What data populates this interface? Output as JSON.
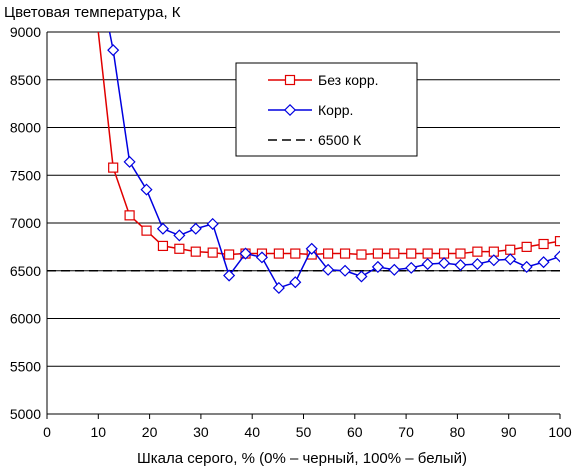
{
  "chart_data": {
    "type": "line",
    "ylabel": "Цветовая температура, К",
    "xlabel": "Шкала серого, % (0% – черный, 100% – белый)",
    "xlim": [
      0,
      100
    ],
    "ylim": [
      5000,
      9000
    ],
    "xticks": [
      "0",
      "10",
      "20",
      "30",
      "40",
      "50",
      "60",
      "70",
      "80",
      "90",
      "100"
    ],
    "yticks": [
      "5000",
      "5500",
      "6000",
      "6500",
      "7000",
      "7500",
      "8000",
      "8500",
      "9000"
    ],
    "grid": "horizontal",
    "legend": "top-right",
    "series": [
      {
        "name": "Без корр.",
        "color": "#e00000",
        "marker": "square",
        "points": [
          [
            10,
            9000
          ],
          [
            12.9,
            7580
          ],
          [
            16.1,
            7080
          ],
          [
            19.4,
            6920
          ],
          [
            22.6,
            6760
          ],
          [
            25.8,
            6730
          ],
          [
            29.0,
            6700
          ],
          [
            32.3,
            6690
          ],
          [
            35.5,
            6670
          ],
          [
            38.7,
            6680
          ],
          [
            41.9,
            6680
          ],
          [
            45.2,
            6680
          ],
          [
            48.4,
            6680
          ],
          [
            51.6,
            6670
          ],
          [
            54.8,
            6680
          ],
          [
            58.1,
            6680
          ],
          [
            61.3,
            6670
          ],
          [
            64.5,
            6680
          ],
          [
            67.7,
            6680
          ],
          [
            71.0,
            6680
          ],
          [
            74.2,
            6680
          ],
          [
            77.4,
            6680
          ],
          [
            80.6,
            6680
          ],
          [
            83.9,
            6700
          ],
          [
            87.1,
            6700
          ],
          [
            90.3,
            6720
          ],
          [
            93.5,
            6750
          ],
          [
            96.8,
            6780
          ],
          [
            100,
            6810
          ]
        ]
      },
      {
        "name": "Корр.",
        "color": "#0000e0",
        "marker": "diamond",
        "points": [
          [
            12.2,
            9000
          ],
          [
            12.9,
            8810
          ],
          [
            16.1,
            7640
          ],
          [
            19.4,
            7350
          ],
          [
            22.6,
            6940
          ],
          [
            25.8,
            6870
          ],
          [
            29.0,
            6940
          ],
          [
            32.3,
            6990
          ],
          [
            35.5,
            6450
          ],
          [
            38.7,
            6680
          ],
          [
            41.9,
            6640
          ],
          [
            45.2,
            6320
          ],
          [
            48.4,
            6380
          ],
          [
            51.6,
            6730
          ],
          [
            54.8,
            6510
          ],
          [
            58.1,
            6500
          ],
          [
            61.3,
            6440
          ],
          [
            64.5,
            6540
          ],
          [
            67.7,
            6510
          ],
          [
            71.0,
            6530
          ],
          [
            74.2,
            6570
          ],
          [
            77.4,
            6580
          ],
          [
            80.6,
            6560
          ],
          [
            83.9,
            6570
          ],
          [
            87.1,
            6610
          ],
          [
            90.3,
            6620
          ],
          [
            93.5,
            6540
          ],
          [
            96.8,
            6590
          ],
          [
            100,
            6650
          ]
        ]
      },
      {
        "name": "6500 К",
        "color": "#000000",
        "marker": "none",
        "dashed": true,
        "points": [
          [
            0,
            6500
          ],
          [
            100,
            6500
          ]
        ]
      }
    ]
  }
}
